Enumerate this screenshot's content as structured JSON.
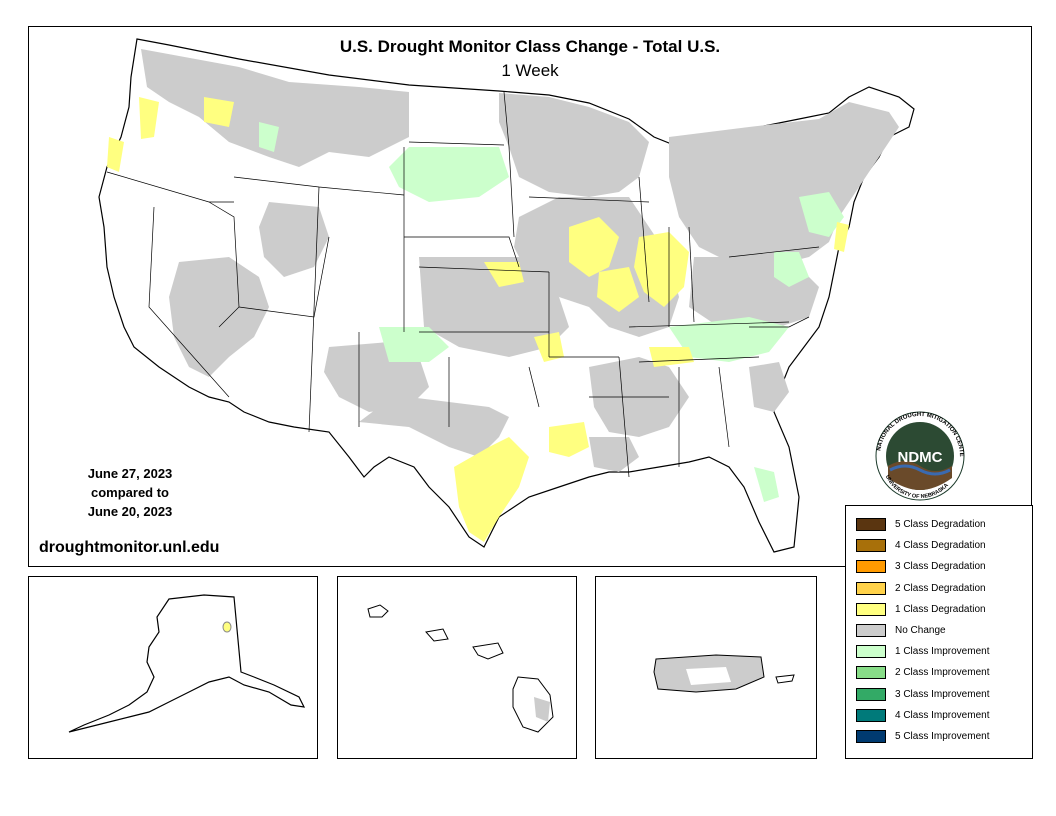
{
  "title": "U.S. Drought Monitor Class Change - Total U.S.",
  "subtitle": "1 Week",
  "dates": {
    "line1": "June 27, 2023",
    "line2": "compared to",
    "line3": "June 20, 2023"
  },
  "url": "droughtmonitor.unl.edu",
  "logo": {
    "text": "NDMC",
    "ring_text": "NATIONAL DROUGHT MITIGATION CENTER",
    "ring_text_bottom": "UNIVERSITY OF NEBRASKA"
  },
  "legend": [
    {
      "label": "5 Class Degradation",
      "color": "#5a3510"
    },
    {
      "label": "4 Class Degradation",
      "color": "#a8700a"
    },
    {
      "label": "3 Class Degradation",
      "color": "#ff9a00"
    },
    {
      "label": "2 Class Degradation",
      "color": "#ffd24a"
    },
    {
      "label": "1 Class Degradation",
      "color": "#ffff80"
    },
    {
      "label": "No Change",
      "color": "#cccccc"
    },
    {
      "label": "1 Class Improvement",
      "color": "#ccffcc"
    },
    {
      "label": "2 Class Improvement",
      "color": "#88dd88"
    },
    {
      "label": "3 Class Improvement",
      "color": "#33aa66"
    },
    {
      "label": "4 Class Improvement",
      "color": "#007a7a"
    },
    {
      "label": "5 Class Improvement",
      "color": "#003a70"
    }
  ]
}
